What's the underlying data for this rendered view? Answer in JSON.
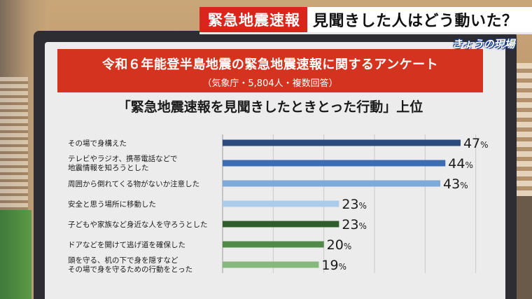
{
  "caption": {
    "tag": "緊急地震速報",
    "text": "見聞きした人はどう動いた？"
  },
  "program_logo": "きょうの現場",
  "header": {
    "title": "令和６年能登半島地震の緊急地震速報に関するアンケート",
    "subtitle": "（気象庁・5,804人・複数回答）"
  },
  "chart_data": {
    "type": "bar",
    "orientation": "horizontal",
    "title": "「緊急地震速報を見聞きしたときとった行動」上位",
    "unit": "%",
    "categories": [
      [
        "その場で身構えた"
      ],
      [
        "テレビやラジオ、携帯電話などで",
        "地震情報を知ろうとした"
      ],
      [
        "周囲から倒れてくる物がないか注意した"
      ],
      [
        "安全と思う場所に移動した"
      ],
      [
        "子どもや家族など身近な人を守ろうとした"
      ],
      [
        "ドアなどを開けて逃げ道を確保した"
      ],
      [
        "頭を守る、机の下で身を隠すなど",
        "その場で身を守るための行動をとった"
      ]
    ],
    "values": [
      47,
      44,
      43,
      23,
      23,
      20,
      19
    ],
    "colors": [
      "#2c4a7c",
      "#3b6db3",
      "#7fa9d8",
      "#aacbea",
      "#2f5e2c",
      "#4f8a47",
      "#86b77c"
    ],
    "xlim": [
      0,
      60
    ],
    "grid": true
  }
}
